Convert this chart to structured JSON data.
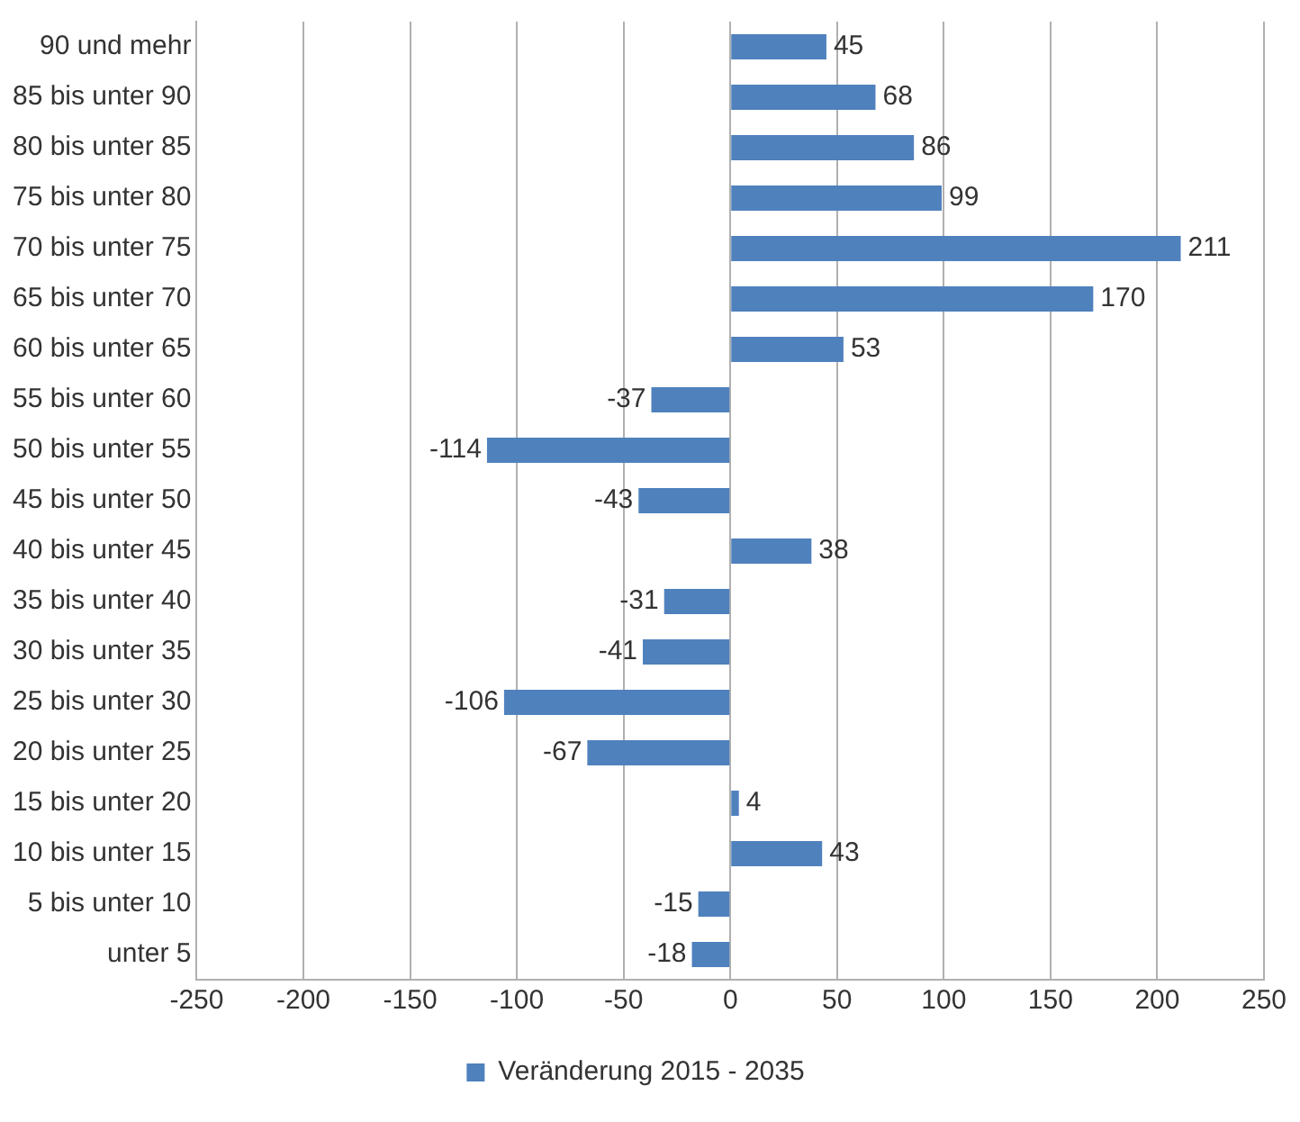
{
  "chart_data": {
    "type": "bar",
    "orientation": "horizontal",
    "categories": [
      "90 und mehr",
      "85 bis unter 90",
      "80 bis unter 85",
      "75 bis unter 80",
      "70 bis unter 75",
      "65 bis unter 70",
      "60 bis unter 65",
      "55 bis unter 60",
      "50 bis unter 55",
      "45 bis unter 50",
      "40 bis unter 45",
      "35 bis unter 40",
      "30 bis unter 35",
      "25 bis unter 30",
      "20 bis unter 25",
      "15 bis unter 20",
      "10 bis unter 15",
      "5 bis unter 10",
      "unter 5"
    ],
    "series": [
      {
        "name": "Veränderung 2015 - 2035",
        "color": "#4f81bd",
        "values": [
          45,
          68,
          86,
          99,
          211,
          170,
          53,
          -37,
          -114,
          -43,
          38,
          -31,
          -41,
          -106,
          -67,
          4,
          43,
          -15,
          -18
        ]
      }
    ],
    "xlim": [
      -250,
      250
    ],
    "xticks": [
      -250,
      -200,
      -150,
      -100,
      -50,
      0,
      50,
      100,
      150,
      200,
      250
    ],
    "grid": "x",
    "legend": "bottom",
    "data_labels": true
  }
}
